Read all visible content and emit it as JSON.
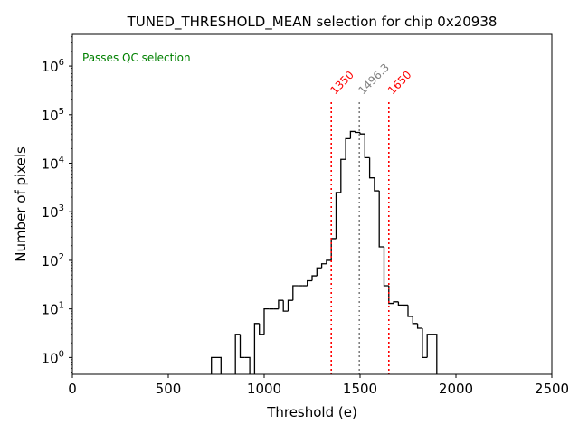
{
  "chart_data": {
    "type": "histogram",
    "title": "TUNED_THRESHOLD_MEAN selection for chip 0x20938",
    "xlabel": "Threshold (e)",
    "ylabel": "Number of pixels",
    "xlim": [
      0,
      2500
    ],
    "ylim": [
      0.45,
      4500000
    ],
    "yscale": "log",
    "grid": false,
    "x_ticks": [
      0,
      500,
      1000,
      1500,
      2000,
      2500
    ],
    "x_tick_labels": [
      "0",
      "500",
      "1000",
      "1500",
      "2000",
      "2500"
    ],
    "y_ticks": [
      1,
      10,
      100,
      1000,
      10000,
      100000,
      1000000
    ],
    "y_tick_bases": [
      "10",
      "10",
      "10",
      "10",
      "10",
      "10",
      "10"
    ],
    "y_tick_exponents": [
      "0",
      "1",
      "2",
      "3",
      "4",
      "5",
      "6"
    ],
    "annotation": "Passes QC selection",
    "bin_width": 25,
    "bins": [
      [
        725,
        1
      ],
      [
        750,
        1
      ],
      [
        850,
        3
      ],
      [
        875,
        1
      ],
      [
        900,
        1
      ],
      [
        950,
        5
      ],
      [
        975,
        3
      ],
      [
        1000,
        10
      ],
      [
        1025,
        10
      ],
      [
        1050,
        10
      ],
      [
        1075,
        15
      ],
      [
        1100,
        9
      ],
      [
        1125,
        15
      ],
      [
        1150,
        30
      ],
      [
        1175,
        30
      ],
      [
        1200,
        30
      ],
      [
        1225,
        38
      ],
      [
        1250,
        48
      ],
      [
        1275,
        70
      ],
      [
        1300,
        85
      ],
      [
        1325,
        100
      ],
      [
        1350,
        280
      ],
      [
        1375,
        2500
      ],
      [
        1400,
        12000
      ],
      [
        1425,
        32000
      ],
      [
        1450,
        45000
      ],
      [
        1475,
        43000
      ],
      [
        1500,
        40000
      ],
      [
        1525,
        13000
      ],
      [
        1550,
        5000
      ],
      [
        1575,
        2700
      ],
      [
        1600,
        190
      ],
      [
        1625,
        30
      ],
      [
        1650,
        13
      ],
      [
        1675,
        14
      ],
      [
        1700,
        12
      ],
      [
        1725,
        12
      ],
      [
        1750,
        7
      ],
      [
        1775,
        5
      ],
      [
        1800,
        4
      ],
      [
        1825,
        1
      ],
      [
        1850,
        3
      ],
      [
        1875,
        3
      ]
    ],
    "cut_lines": [
      {
        "x": 1350,
        "label": "1350",
        "color": "#ff0000"
      },
      {
        "x": 1496.3,
        "label": "1496.3",
        "color": "#808080"
      },
      {
        "x": 1650,
        "label": "1650",
        "color": "#ff0000"
      }
    ],
    "colors": {
      "histogram": "#000000",
      "annotation": "#008000",
      "cut": "#ff0000",
      "mean": "#808080"
    }
  }
}
